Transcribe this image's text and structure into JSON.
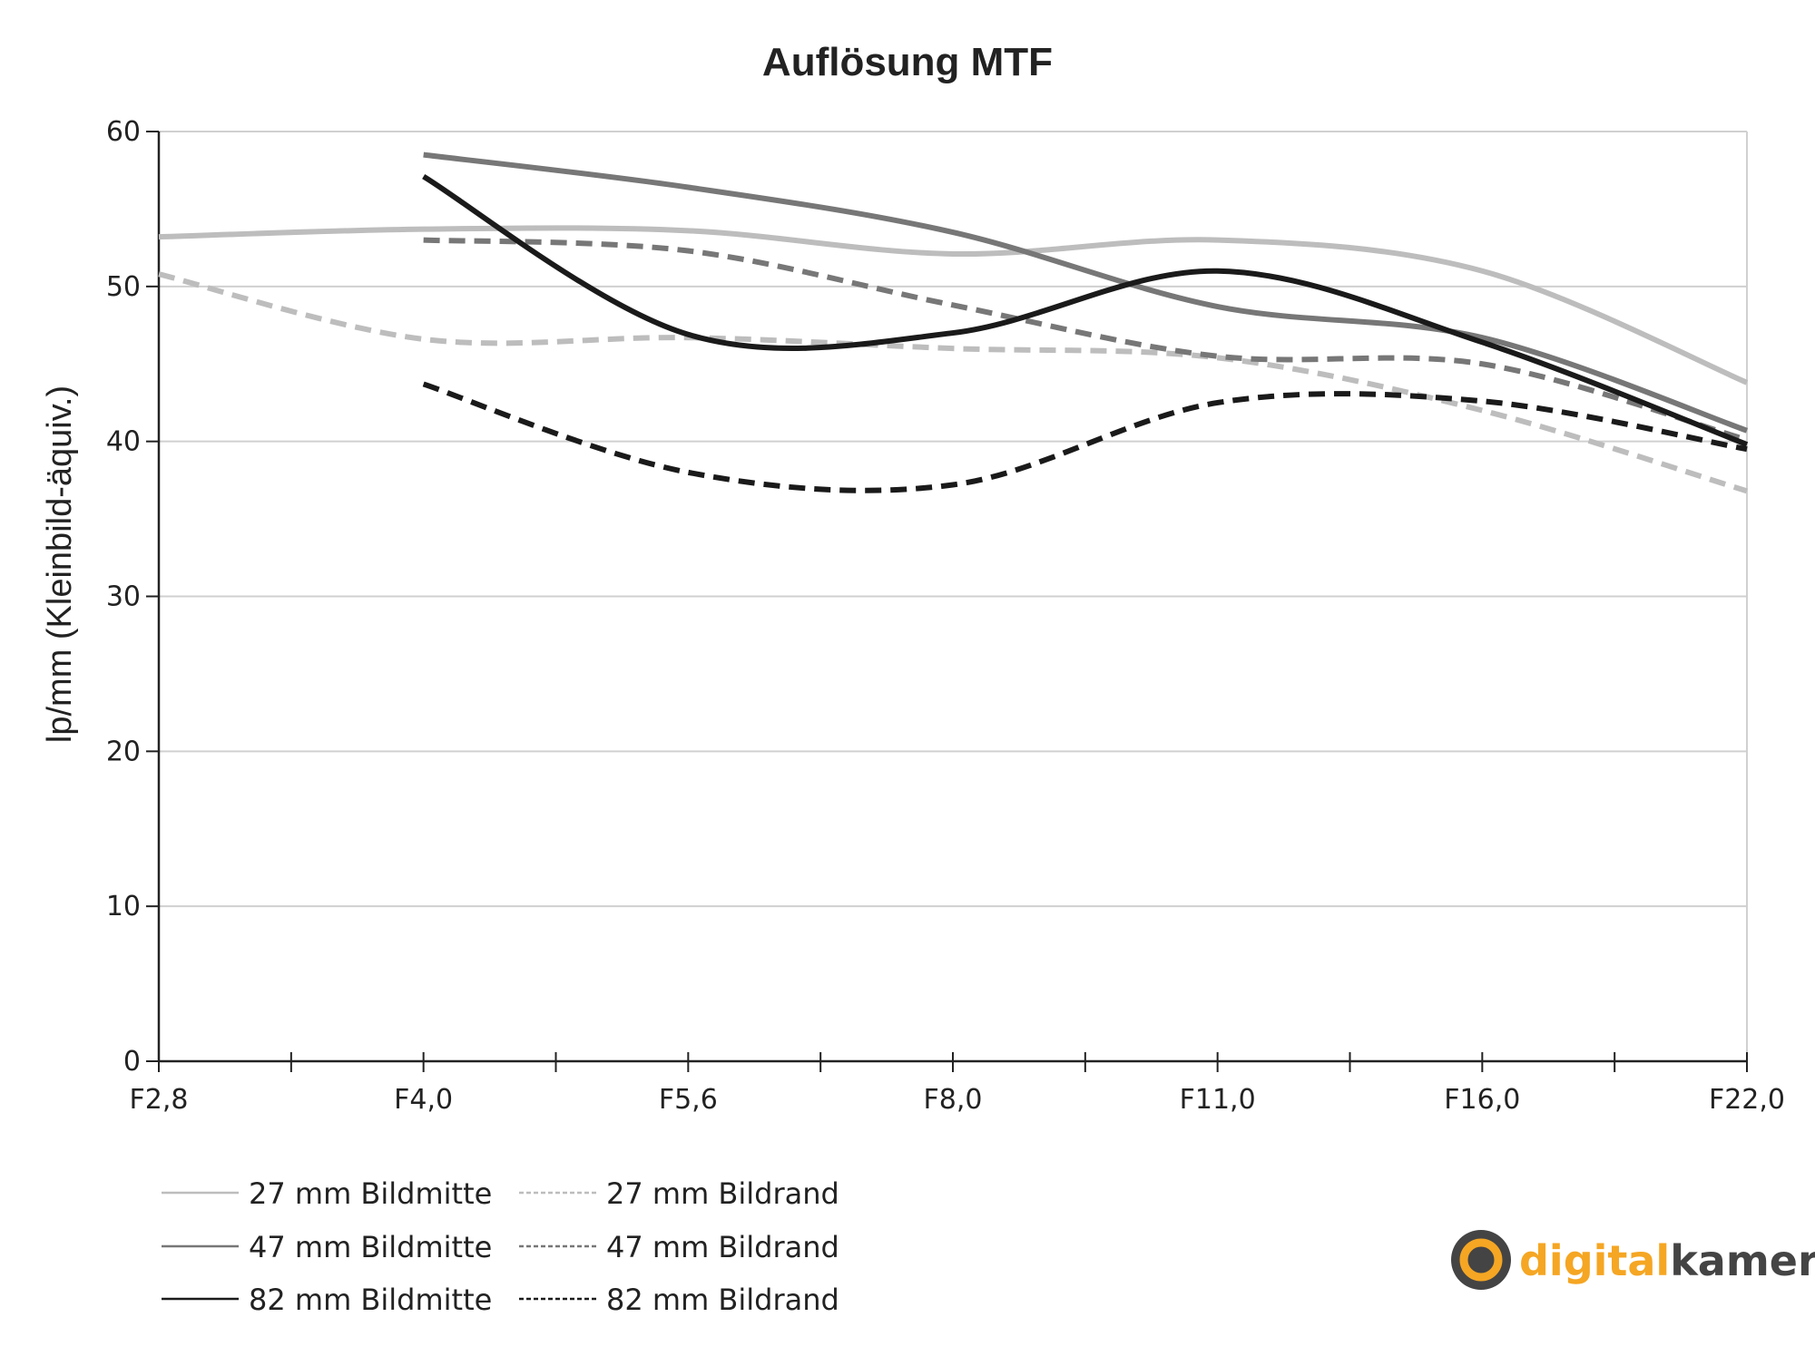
{
  "chart_data": {
    "type": "line",
    "title": "Auflösung MTF",
    "xlabel": "",
    "ylabel": "lp/mm (Kleinbild-äquiv.)",
    "categories": [
      "F2,8",
      "F4,0",
      "F5,6",
      "F8,0",
      "F11,0",
      "F16,0",
      "F22,0"
    ],
    "ylim": [
      0,
      60
    ],
    "yticks": [
      "0",
      "10",
      "20",
      "30",
      "40",
      "50",
      "60"
    ],
    "grid": true,
    "legend_position": "bottom-left",
    "series": [
      {
        "name": "27 mm Bildmitte",
        "color": "#bdbdbd",
        "dash": "solid",
        "values": [
          53.2,
          53.7,
          53.6,
          52.1,
          53.0,
          51.0,
          43.8
        ]
      },
      {
        "name": "27 mm Bildrand",
        "color": "#bdbdbd",
        "dash": "dashed",
        "values": [
          50.8,
          46.6,
          46.7,
          46.0,
          45.4,
          42.0,
          36.8
        ]
      },
      {
        "name": "47 mm Bildmitte",
        "color": "#777777",
        "dash": "solid",
        "values": [
          null,
          58.5,
          56.4,
          53.5,
          48.7,
          46.7,
          40.7
        ]
      },
      {
        "name": "47 mm Bildrand",
        "color": "#777777",
        "dash": "dashed",
        "values": [
          null,
          53.0,
          52.3,
          48.8,
          45.5,
          45.0,
          40.1
        ]
      },
      {
        "name": "82 mm Bildmitte",
        "color": "#1a1a1a",
        "dash": "solid",
        "values": [
          null,
          57.1,
          46.9,
          47.0,
          51.0,
          46.4,
          39.8
        ]
      },
      {
        "name": "82 mm Bildrand",
        "color": "#1a1a1a",
        "dash": "dashed",
        "values": [
          null,
          43.7,
          38.0,
          37.2,
          42.5,
          42.6,
          39.5
        ]
      }
    ]
  },
  "logo": {
    "part1": "digital",
    "part2": "kamera.de",
    "color1": "#f5a623",
    "color2": "#444444"
  }
}
